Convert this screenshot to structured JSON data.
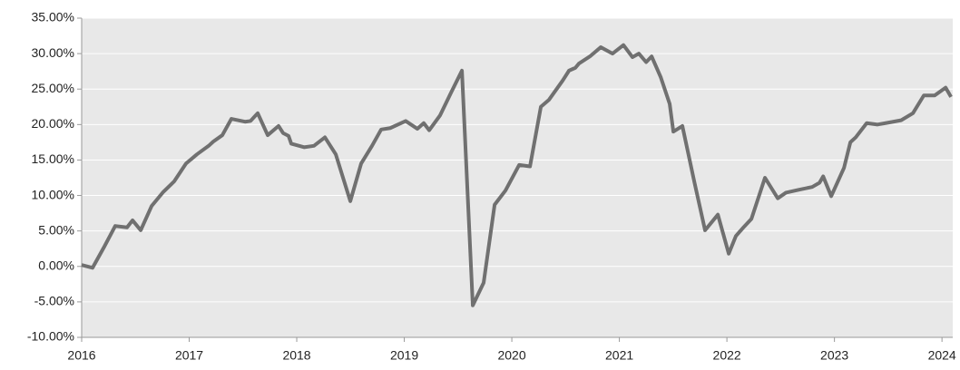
{
  "chart_data": {
    "type": "line",
    "x": [
      2016.0,
      2016.101,
      2016.211,
      2016.312,
      2016.422,
      2016.473,
      2016.549,
      2016.65,
      2016.759,
      2016.861,
      2016.97,
      2017.072,
      2017.181,
      2017.224,
      2017.308,
      2017.392,
      2017.519,
      2017.57,
      2017.637,
      2017.73,
      2017.831,
      2017.873,
      2017.924,
      2017.949,
      2018.068,
      2018.16,
      2018.262,
      2018.363,
      2018.498,
      2018.599,
      2018.7,
      2018.785,
      2018.869,
      2019.013,
      2019.122,
      2019.181,
      2019.232,
      2019.333,
      2019.435,
      2019.536,
      2019.637,
      2019.738,
      2019.84,
      2019.941,
      2020.068,
      2020.169,
      2020.27,
      2020.346,
      2020.473,
      2020.532,
      2020.591,
      2020.624,
      2020.726,
      2020.827,
      2020.937,
      2021.038,
      2021.122,
      2021.181,
      2021.249,
      2021.3,
      2021.384,
      2021.468,
      2021.502,
      2021.586,
      2021.696,
      2021.797,
      2021.916,
      2022.017,
      2022.084,
      2022.16,
      2022.228,
      2022.354,
      2022.473,
      2022.549,
      2022.667,
      2022.793,
      2022.861,
      2022.895,
      2022.97,
      2023.089,
      2023.148,
      2023.198,
      2023.3,
      2023.401,
      2023.511,
      2023.62,
      2023.73,
      2023.831,
      2023.932,
      2024.034,
      2024.084
    ],
    "series": [
      {
        "color": "#707070",
        "values": [
          0.2,
          -0.2,
          2.8,
          5.7,
          5.5,
          6.5,
          5.1,
          8.5,
          10.5,
          12,
          14.5,
          15.8,
          17,
          17.6,
          18.5,
          20.8,
          20.4,
          20.5,
          21.6,
          18.5,
          19.8,
          18.8,
          18.4,
          17.3,
          16.8,
          17,
          18.2,
          15.8,
          9.2,
          14.5,
          17,
          19.3,
          19.5,
          20.5,
          19.4,
          20.2,
          19.2,
          21.3,
          24.5,
          27.6,
          -5.5,
          -2.3,
          8.7,
          10.7,
          14.3,
          14.1,
          22.5,
          23.5,
          26.2,
          27.6,
          28,
          28.6,
          29.6,
          30.9,
          30,
          31.2,
          29.5,
          30,
          28.8,
          29.6,
          26.7,
          22.9,
          19,
          19.8,
          12,
          5.1,
          7.3,
          1.8,
          4.3,
          5.6,
          6.7,
          12.5,
          9.6,
          10.4,
          10.8,
          11.2,
          11.8,
          12.7,
          9.9,
          13.9,
          17.5,
          18.2,
          20.2,
          20,
          20.3,
          20.6,
          21.6,
          24.1,
          24.1,
          25.2,
          23.9
        ]
      }
    ],
    "xlim": [
      2016,
      2024.1
    ],
    "xticks": [
      2016,
      2017,
      2018,
      2019,
      2020,
      2021,
      2022,
      2023,
      2024
    ],
    "ylim": [
      -10,
      35
    ],
    "yticks": [
      {
        "value": -10,
        "label": "-10.00%"
      },
      {
        "value": -5,
        "label": "-5.00%"
      },
      {
        "value": 0,
        "label": "0.00%"
      },
      {
        "value": 5,
        "label": "5.00%"
      },
      {
        "value": 10,
        "label": "10.00%"
      },
      {
        "value": 15,
        "label": "15.00%"
      },
      {
        "value": 20,
        "label": "20.00%"
      },
      {
        "value": 25,
        "label": "25.00%"
      },
      {
        "value": 30,
        "label": "30.00%"
      },
      {
        "value": 35,
        "label": "35.00%"
      }
    ],
    "grid": true
  }
}
